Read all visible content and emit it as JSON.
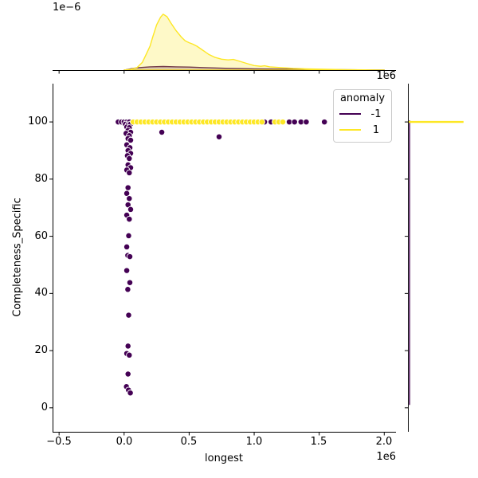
{
  "figure": {
    "top_marginal": {
      "density_offset_label": "1e−6",
      "x_offset_label": "1e6"
    },
    "main": {
      "xlabel": "longest",
      "ylabel": "Completeness_Specific",
      "x_offset_label": "1e6"
    },
    "legend": {
      "title": "anomaly",
      "entries": [
        {
          "label": "-1",
          "color": "#440154"
        },
        {
          "label": "1",
          "color": "#fde725"
        }
      ]
    }
  },
  "chart_data": {
    "type": "scatter",
    "title": "",
    "xlabel": "longest",
    "ylabel": "Completeness_Specific",
    "x_scale_note": "x values in units of 1e6",
    "xlim": [
      -0.55,
      2.09
    ],
    "ylim": [
      -8.4,
      113.4
    ],
    "x_ticks": [
      -0.5,
      0.0,
      0.5,
      1.0,
      1.5,
      2.0
    ],
    "x_tick_labels": [
      "−0.5",
      "0.0",
      "0.5",
      "1.0",
      "1.5",
      "2.0"
    ],
    "y_ticks": [
      0,
      20,
      40,
      60,
      80,
      100
    ],
    "y_tick_labels": [
      "0",
      "20",
      "40",
      "60",
      "80",
      "100"
    ],
    "legend_title": "anomaly",
    "legend_position": "upper right",
    "grid": false,
    "series": [
      {
        "name": "-1",
        "color": "#440154",
        "points": [
          [
            -0.045,
            100
          ],
          [
            -0.02,
            100
          ],
          [
            0.0,
            100
          ],
          [
            0.02,
            100
          ],
          [
            0.04,
            100
          ],
          [
            0.01,
            99.2
          ],
          [
            0.03,
            99.0
          ],
          [
            0.05,
            99.3
          ],
          [
            0.02,
            98.2
          ],
          [
            0.04,
            98.0
          ],
          [
            0.03,
            97.0
          ],
          [
            0.05,
            96.4
          ],
          [
            0.015,
            96.0
          ],
          [
            0.04,
            95.2
          ],
          [
            0.03,
            94.2
          ],
          [
            0.05,
            93.6
          ],
          [
            0.02,
            92.0
          ],
          [
            0.045,
            91.0
          ],
          [
            0.03,
            90.0
          ],
          [
            0.05,
            89.0
          ],
          [
            0.025,
            88.2
          ],
          [
            0.04,
            87.2
          ],
          [
            0.03,
            85.0
          ],
          [
            0.05,
            84.0
          ],
          [
            0.02,
            83.2
          ],
          [
            0.04,
            82.2
          ],
          [
            0.03,
            77.0
          ],
          [
            0.02,
            75.0
          ],
          [
            0.04,
            73.2
          ],
          [
            0.03,
            71.0
          ],
          [
            0.05,
            69.4
          ],
          [
            0.02,
            67.4
          ],
          [
            0.04,
            66.0
          ],
          [
            0.035,
            60.2
          ],
          [
            0.02,
            56.3
          ],
          [
            0.028,
            53.3
          ],
          [
            0.044,
            52.9
          ],
          [
            0.02,
            48.0
          ],
          [
            0.044,
            43.8
          ],
          [
            0.028,
            41.4
          ],
          [
            0.035,
            32.4
          ],
          [
            0.03,
            21.6
          ],
          [
            0.02,
            19.0
          ],
          [
            0.04,
            18.4
          ],
          [
            0.03,
            11.8
          ],
          [
            0.018,
            7.4
          ],
          [
            0.034,
            6.2
          ],
          [
            0.048,
            5.2
          ],
          [
            0.29,
            96.4
          ],
          [
            0.73,
            94.8
          ],
          [
            1.08,
            100
          ],
          [
            1.13,
            100
          ],
          [
            1.27,
            100
          ],
          [
            1.31,
            100
          ],
          [
            1.36,
            100
          ],
          [
            1.4,
            100
          ],
          [
            1.54,
            100
          ]
        ]
      },
      {
        "name": "1",
        "color": "#fde725",
        "points": [
          [
            0.07,
            100
          ],
          [
            0.1,
            100
          ],
          [
            0.13,
            100
          ],
          [
            0.16,
            100
          ],
          [
            0.19,
            100
          ],
          [
            0.22,
            100
          ],
          [
            0.25,
            100
          ],
          [
            0.28,
            100
          ],
          [
            0.31,
            100
          ],
          [
            0.34,
            100
          ],
          [
            0.37,
            100
          ],
          [
            0.4,
            100
          ],
          [
            0.43,
            100
          ],
          [
            0.46,
            100
          ],
          [
            0.49,
            100
          ],
          [
            0.52,
            100
          ],
          [
            0.55,
            100
          ],
          [
            0.58,
            100
          ],
          [
            0.61,
            100
          ],
          [
            0.64,
            100
          ],
          [
            0.67,
            100
          ],
          [
            0.7,
            100
          ],
          [
            0.73,
            100
          ],
          [
            0.76,
            100
          ],
          [
            0.79,
            100
          ],
          [
            0.82,
            100
          ],
          [
            0.85,
            100
          ],
          [
            0.88,
            100
          ],
          [
            0.91,
            100
          ],
          [
            0.94,
            100
          ],
          [
            0.97,
            100
          ],
          [
            1.0,
            100
          ],
          [
            1.03,
            100
          ],
          [
            1.06,
            100
          ],
          [
            1.16,
            100
          ],
          [
            1.19,
            100
          ],
          [
            1.22,
            100
          ]
        ]
      }
    ],
    "top_kde": {
      "dlim": [
        0,
        2.32
      ],
      "density_units": "1e−6",
      "series": [
        {
          "name": "-1",
          "color": "#440154",
          "points": [
            [
              0.0,
              0.0
            ],
            [
              0.05,
              0.05
            ],
            [
              0.1,
              0.09
            ],
            [
              0.2,
              0.13
            ],
            [
              0.3,
              0.14
            ],
            [
              0.4,
              0.13
            ],
            [
              0.5,
              0.12
            ],
            [
              0.6,
              0.1
            ],
            [
              0.7,
              0.085
            ],
            [
              0.8,
              0.07
            ],
            [
              0.9,
              0.06
            ],
            [
              1.0,
              0.05
            ],
            [
              1.2,
              0.04
            ],
            [
              1.4,
              0.028
            ],
            [
              1.6,
              0.018
            ],
            [
              1.8,
              0.008
            ],
            [
              2.0,
              0.0
            ]
          ]
        },
        {
          "name": "1",
          "color": "#fde725",
          "points": [
            [
              0.0,
              0.0
            ],
            [
              0.05,
              0.03
            ],
            [
              0.1,
              0.1
            ],
            [
              0.14,
              0.3
            ],
            [
              0.17,
              0.62
            ],
            [
              0.2,
              0.95
            ],
            [
              0.22,
              1.3
            ],
            [
              0.25,
              1.78
            ],
            [
              0.28,
              2.08
            ],
            [
              0.3,
              2.2
            ],
            [
              0.33,
              2.1
            ],
            [
              0.36,
              1.85
            ],
            [
              0.4,
              1.55
            ],
            [
              0.44,
              1.3
            ],
            [
              0.47,
              1.15
            ],
            [
              0.5,
              1.08
            ],
            [
              0.53,
              1.02
            ],
            [
              0.56,
              0.94
            ],
            [
              0.6,
              0.8
            ],
            [
              0.65,
              0.62
            ],
            [
              0.7,
              0.5
            ],
            [
              0.75,
              0.43
            ],
            [
              0.8,
              0.4
            ],
            [
              0.84,
              0.42
            ],
            [
              0.88,
              0.36
            ],
            [
              0.95,
              0.25
            ],
            [
              1.0,
              0.18
            ],
            [
              1.05,
              0.15
            ],
            [
              1.08,
              0.17
            ],
            [
              1.12,
              0.13
            ],
            [
              1.2,
              0.1
            ],
            [
              1.3,
              0.07
            ],
            [
              1.4,
              0.05
            ],
            [
              1.55,
              0.035
            ],
            [
              1.7,
              0.02
            ],
            [
              1.85,
              0.01
            ],
            [
              2.0,
              0.004
            ]
          ]
        }
      ]
    },
    "right_kde": {
      "series": [
        {
          "name": "-1",
          "color": "#440154",
          "profile": "thin-line-hugging-axis",
          "y_range": [
            1,
            100.5
          ]
        },
        {
          "name": "1",
          "color": "#fde725",
          "peak_y": 100,
          "extent_fraction": 0.85
        }
      ]
    }
  }
}
